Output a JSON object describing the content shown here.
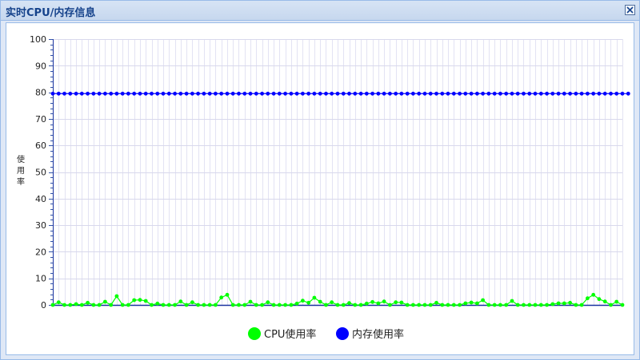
{
  "window": {
    "title": "实时CPU/内存信息"
  },
  "chart_data": {
    "type": "line",
    "title": "",
    "xlabel": "",
    "ylabel": "使用率",
    "ylim": [
      0,
      100
    ],
    "yticks": [
      0,
      10,
      20,
      30,
      40,
      50,
      60,
      70,
      80,
      90,
      100
    ],
    "grid": true,
    "legend": "bottom-center",
    "series": [
      {
        "name": "CPU使用率",
        "color": "#00ff00",
        "values": [
          0,
          1,
          0,
          0,
          0.3,
          0,
          0.8,
          0,
          0,
          1.2,
          0,
          3.3,
          0,
          0,
          1.8,
          1.9,
          1.5,
          0,
          0.5,
          0,
          0,
          0,
          1.3,
          0,
          1,
          0,
          0,
          0,
          0,
          2.8,
          3.8,
          0,
          0,
          0,
          1.2,
          0,
          0,
          1,
          0,
          0,
          0,
          0,
          0.5,
          1.6,
          0.8,
          2.7,
          1.2,
          0,
          1,
          0,
          0,
          0.7,
          0,
          0,
          0.5,
          1.1,
          0.6,
          1.3,
          0,
          1,
          0.9,
          0,
          0,
          0,
          0,
          0,
          0.8,
          0,
          0,
          0,
          0,
          0.6,
          0.9,
          0.6,
          1.8,
          0,
          0,
          0,
          0,
          1.5,
          0,
          0,
          0,
          0,
          0,
          0,
          0.3,
          0.6,
          0.6,
          0.8,
          0,
          0,
          2.5,
          3.8,
          2.2,
          1.3,
          0,
          1.2,
          0
        ]
      },
      {
        "name": "内存使用率",
        "color": "#0000ff",
        "values": [
          79.5,
          79.5,
          79.5,
          79.5,
          79.5,
          79.5,
          79.5,
          79.5,
          79.5,
          79.5,
          79.5,
          79.5,
          79.5,
          79.5,
          79.5,
          79.5,
          79.5,
          79.5,
          79.5,
          79.5,
          79.5,
          79.5,
          79.5,
          79.5,
          79.5,
          79.5,
          79.5,
          79.5,
          79.5,
          79.5,
          79.5,
          79.5,
          79.5,
          79.5,
          79.5,
          79.5,
          79.5,
          79.5,
          79.5,
          79.5,
          79.5,
          79.5,
          79.5,
          79.5,
          79.5,
          79.5,
          79.5,
          79.5,
          79.5,
          79.5,
          79.5,
          79.5,
          79.5,
          79.5,
          79.5,
          79.5,
          79.5,
          79.5,
          79.5,
          79.5,
          79.5,
          79.5,
          79.5,
          79.5,
          79.5,
          79.5,
          79.5,
          79.5,
          79.5,
          79.5,
          79.5,
          79.5,
          79.5,
          79.5,
          79.5,
          79.5,
          79.5,
          79.5,
          79.5,
          79.5,
          79.5,
          79.5,
          79.5,
          79.5,
          79.5,
          79.5,
          79.5,
          79.5,
          79.5,
          79.5,
          79.5,
          79.5,
          79.5,
          79.5,
          79.5,
          79.5,
          79.5,
          79.5,
          79.5,
          79.5
        ]
      }
    ]
  }
}
